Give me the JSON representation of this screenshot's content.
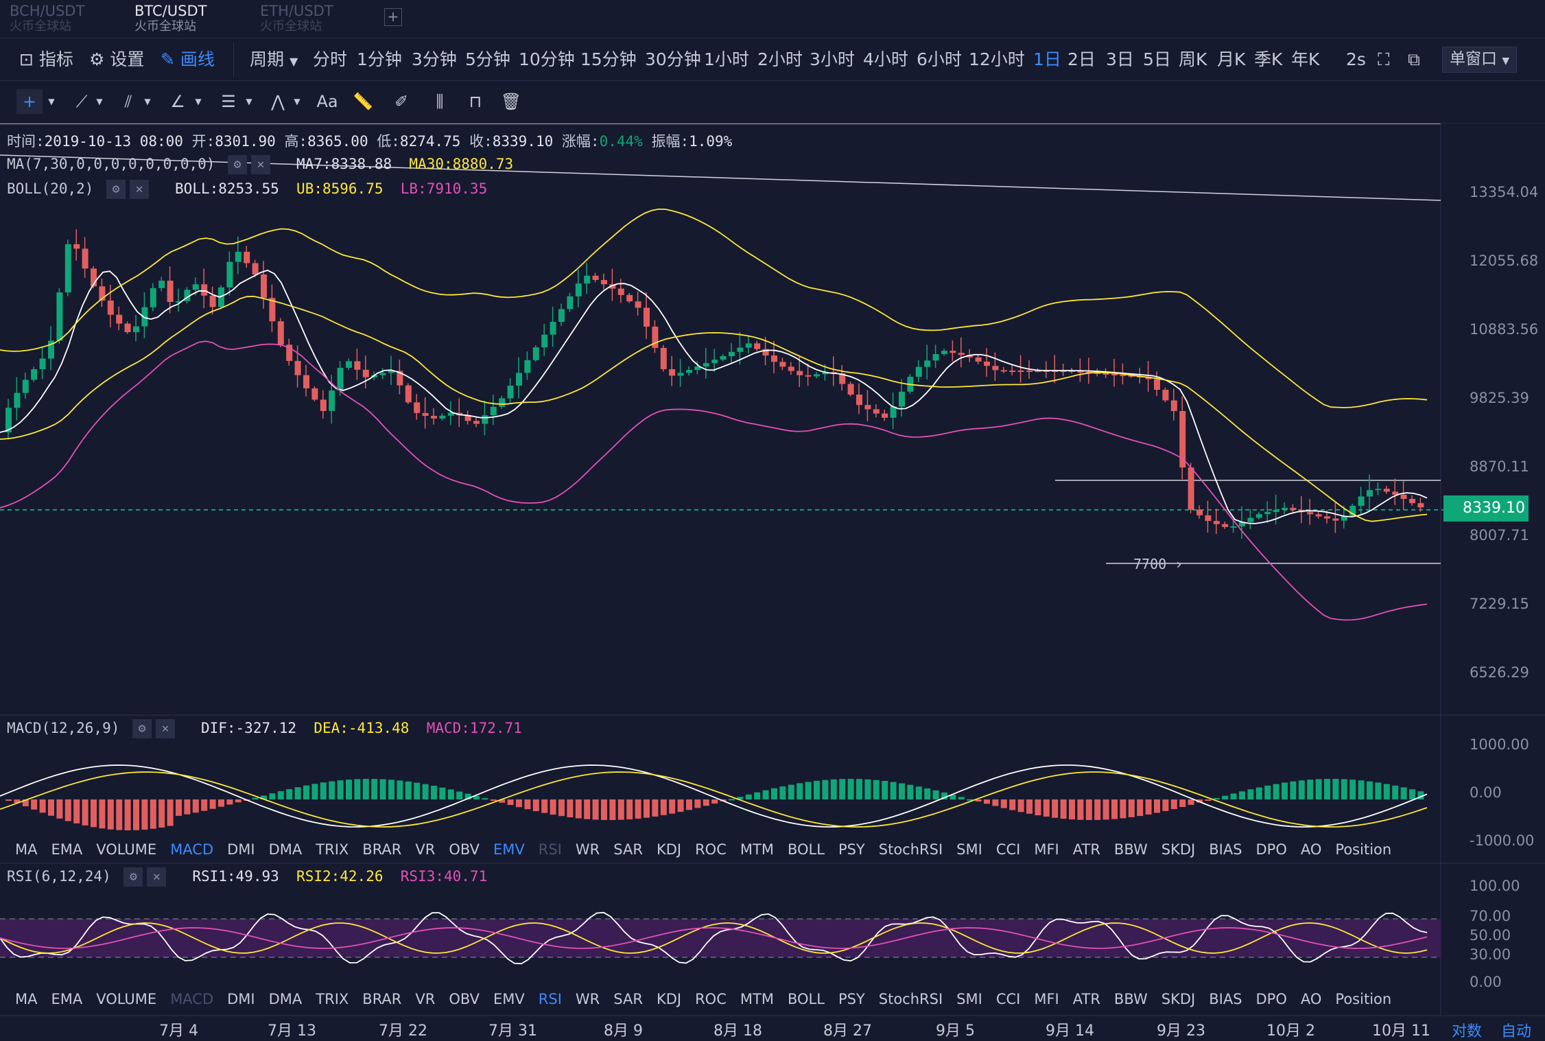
{
  "tabs": [
    {
      "pair": "BCH/USDT",
      "sub": "火币全球站",
      "active": false
    },
    {
      "pair": "BTC/USDT",
      "sub": "火币全球站",
      "active": true
    },
    {
      "pair": "ETH/USDT",
      "sub": "火币全球站",
      "active": false
    }
  ],
  "tab_add": "+",
  "toolbar": {
    "indicators": "指标",
    "settings": "设置",
    "draw": "画线",
    "period": "周期",
    "periods": [
      "分时",
      "1分钟",
      "3分钟",
      "5分钟",
      "10分钟",
      "15分钟",
      "30分钟",
      "1小时",
      "2小时",
      "3小时",
      "4小时",
      "6小时",
      "12小时",
      "1日",
      "2日",
      "3日",
      "5日",
      "周K",
      "月K",
      "季K",
      "年K"
    ],
    "selected_period": "1日",
    "refresh": "2s",
    "window": "单窗口"
  },
  "drawtools": {
    "text_tool": "Aa"
  },
  "ohlc": {
    "time_label": "时间:",
    "time": "2019-10-13 08:00",
    "open_label": "开:",
    "open": "8301.90",
    "high_label": "高:",
    "high": "8365.00",
    "low_label": "低:",
    "low": "8274.75",
    "close_label": "收:",
    "close": "8339.10",
    "change_label": "涨幅:",
    "change": "0.44%",
    "amp_label": "振幅:",
    "amp": "1.09%"
  },
  "ma": {
    "name": "MA(7,30,0,0,0,0,0,0,0,0)",
    "ma7": "MA7:8338.88",
    "ma30": "MA30:8880.73"
  },
  "boll": {
    "name": "BOLL(20,2)",
    "boll": "BOLL:8253.55",
    "ub": "UB:8596.75",
    "lb": "LB:7910.35"
  },
  "price_axis": [
    "13354.04",
    "12055.68",
    "10883.56",
    "9825.39",
    "8870.11",
    "8007.71",
    "7229.15",
    "6526.29"
  ],
  "current_price": "8339.10",
  "annotation": "7700",
  "macd": {
    "name": "MACD(12,26,9)",
    "dif": "DIF:-327.12",
    "dea": "DEA:-413.48",
    "macd": "MACD:172.71",
    "axis": [
      "1000.00",
      "0.00",
      "-1000.00"
    ]
  },
  "indicator_tabs": [
    "MA",
    "EMA",
    "VOLUME",
    "MACD",
    "DMI",
    "DMA",
    "TRIX",
    "BRAR",
    "VR",
    "OBV",
    "EMV",
    "RSI",
    "WR",
    "SAR",
    "KDJ",
    "ROC",
    "MTM",
    "BOLL",
    "PSY",
    "StochRSI",
    "SMI",
    "CCI",
    "MFI",
    "ATR",
    "BBW",
    "SKDJ",
    "BIAS",
    "DPO",
    "AO",
    "Position"
  ],
  "rsi": {
    "name": "RSI(6,12,24)",
    "rsi1": "RSI1:49.93",
    "rsi2": "RSI2:42.26",
    "rsi3": "RSI3:40.71",
    "axis": [
      "100.00",
      "70.00",
      "50.00",
      "30.00",
      "0.00"
    ]
  },
  "x_axis": [
    "7月 4",
    "7月 13",
    "7月 22",
    "7月 31",
    "8月 9",
    "8月 18",
    "8月 27",
    "9月 5",
    "9月 14",
    "9月 23",
    "10月 2",
    "10月 11"
  ],
  "bottom_right": {
    "log": "对数",
    "auto": "自动"
  },
  "colors": {
    "bg": "#161a2e",
    "up": "#0fa678",
    "down": "#e25f5f",
    "accent": "#3b8bff",
    "ma7": "#ffffff",
    "ma30": "#ffe83a",
    "lb": "#e251b8"
  }
}
